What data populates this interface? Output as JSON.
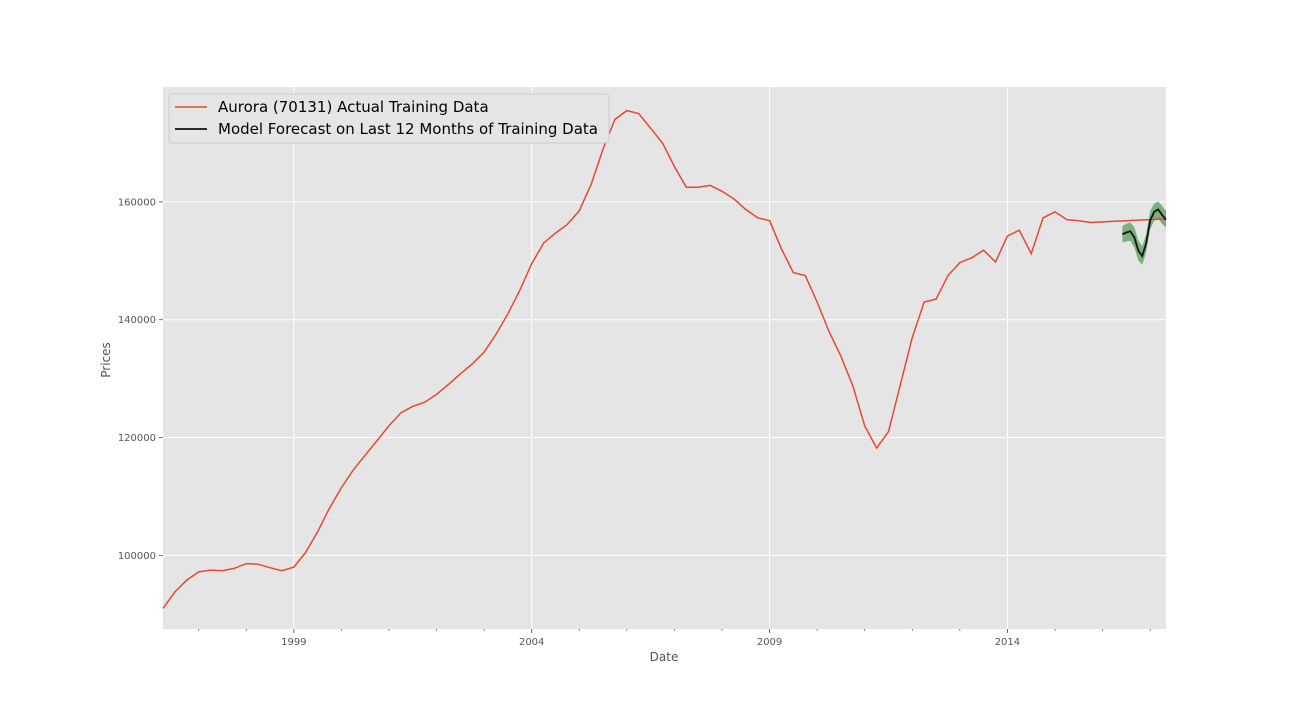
{
  "chart_data": {
    "type": "line",
    "title": "",
    "xlabel": "Date",
    "ylabel": "Prices",
    "xlim": [
      "1996-04",
      "2017-05"
    ],
    "ylim": [
      87500,
      179500
    ],
    "x_ticks": [
      "1999",
      "2004",
      "2009",
      "2014"
    ],
    "y_ticks": [
      100000,
      120000,
      140000,
      160000
    ],
    "y_tick_labels": [
      "100000",
      "120000",
      "140000",
      "160000"
    ],
    "grid": true,
    "legend_position": "top-left",
    "colors": {
      "background": "#E5E5E5",
      "grid": "#FFFFFF",
      "actual": "#E24A33",
      "forecast": "#111111",
      "confidence_band": "#348A34"
    },
    "series": [
      {
        "name": "Aurora (70131) Actual Training Data",
        "x": [
          "1996-04",
          "1996-07",
          "1996-10",
          "1997-01",
          "1997-04",
          "1997-07",
          "1997-10",
          "1998-01",
          "1998-04",
          "1998-07",
          "1998-10",
          "1999-01",
          "1999-04",
          "1999-07",
          "1999-10",
          "2000-01",
          "2000-04",
          "2000-07",
          "2000-10",
          "2001-01",
          "2001-04",
          "2001-07",
          "2001-10",
          "2002-01",
          "2002-04",
          "2002-07",
          "2002-10",
          "2003-01",
          "2003-04",
          "2003-07",
          "2003-10",
          "2004-01",
          "2004-04",
          "2004-07",
          "2004-10",
          "2005-01",
          "2005-04",
          "2005-07",
          "2005-10",
          "2006-01",
          "2006-04",
          "2006-07",
          "2006-10",
          "2007-01",
          "2007-04",
          "2007-07",
          "2007-10",
          "2008-01",
          "2008-04",
          "2008-07",
          "2008-10",
          "2009-01",
          "2009-04",
          "2009-07",
          "2009-10",
          "2010-01",
          "2010-04",
          "2010-07",
          "2010-10",
          "2011-01",
          "2011-04",
          "2011-07",
          "2011-10",
          "2012-01",
          "2012-04",
          "2012-07",
          "2012-10",
          "2013-01",
          "2013-04",
          "2013-07",
          "2013-10",
          "2014-01",
          "2014-04",
          "2014-07",
          "2014-10",
          "2015-01",
          "2015-04",
          "2015-07",
          "2015-10",
          "2016-01",
          "2016-04",
          "2016-07",
          "2016-10",
          "2017-01",
          "2017-04",
          "2017-05"
        ],
        "values": [
          91000,
          93800,
          95800,
          97200,
          97500,
          97400,
          97800,
          98600,
          98500,
          97900,
          97400,
          98000,
          100500,
          104000,
          108000,
          111500,
          114500,
          117000,
          119500,
          122000,
          124200,
          125300,
          126000,
          127300,
          129000,
          130800,
          132500,
          134500,
          137500,
          141000,
          145000,
          149500,
          153000,
          154700,
          156200,
          158500,
          163000,
          169000,
          174000,
          175500,
          175000,
          172500,
          170000,
          166000,
          162500,
          162500,
          162800,
          161800,
          160500,
          158700,
          157300,
          156800,
          152000,
          148000,
          147500,
          143000,
          138000,
          133800,
          128800,
          122000,
          118200,
          121000,
          129000,
          137000,
          143000,
          143500,
          147500,
          149700,
          150500,
          151800,
          149800,
          154200,
          155200,
          151200,
          157300,
          158300,
          157000,
          156800,
          156500,
          156600,
          156700,
          156800,
          156900,
          157000,
          157100,
          157000
        ]
      },
      {
        "name": "Model Forecast on Last 12 Months of Training Data",
        "x": [
          "2016-06",
          "2016-07",
          "2016-08",
          "2016-09",
          "2016-10",
          "2016-11",
          "2016-12",
          "2017-01",
          "2017-02",
          "2017-03",
          "2017-04",
          "2017-05"
        ],
        "values": [
          154500,
          154800,
          155000,
          154000,
          151800,
          150800,
          153000,
          156800,
          158300,
          158700,
          157800,
          157000
        ],
        "lower": [
          153100,
          153300,
          153400,
          152300,
          150100,
          149300,
          151500,
          155300,
          156800,
          157200,
          156300,
          155600
        ],
        "upper": [
          155900,
          156300,
          156500,
          155700,
          153500,
          152500,
          154500,
          158400,
          159700,
          160100,
          159300,
          158500
        ]
      }
    ]
  }
}
